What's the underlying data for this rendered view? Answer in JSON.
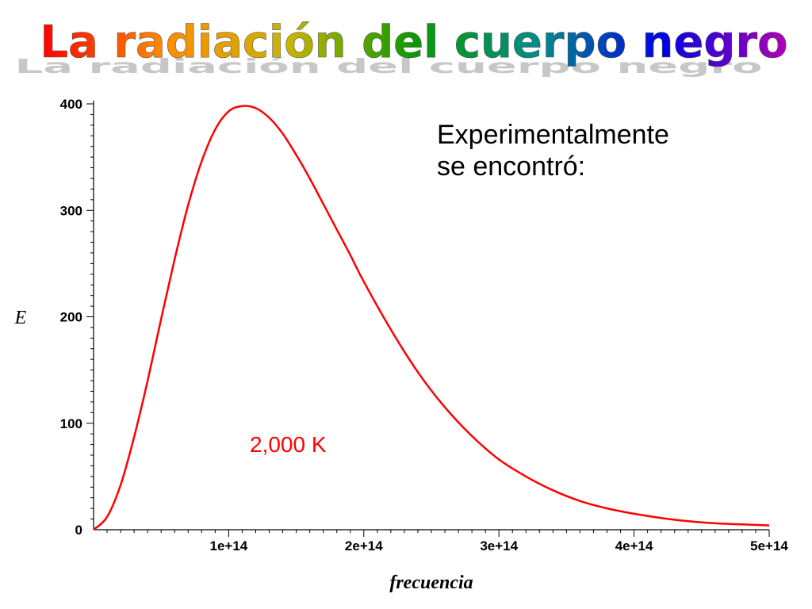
{
  "slide": {
    "title": "La radiación del cuerpo negro",
    "note_line1": "Experimentalmente",
    "note_line2": "se encontró:",
    "curve_label": "2,000 K"
  },
  "colors": {
    "curve": "#ff0000",
    "title_gradient": [
      "#ff0000",
      "#ff8c00",
      "#c8b400",
      "#0a9a00",
      "#008c8c",
      "#0000e6",
      "#b400b4"
    ],
    "title_shadow": "#999999"
  },
  "chart_data": {
    "type": "line",
    "xlabel": "frecuencia",
    "ylabel": "E",
    "xlim": [
      0,
      500000000000000.0
    ],
    "ylim": [
      0,
      400
    ],
    "x_ticks": [
      100000000000000.0,
      200000000000000.0,
      300000000000000.0,
      400000000000000.0,
      500000000000000.0
    ],
    "x_tick_labels": [
      "1e+14",
      "2e+14",
      "3e+14",
      "4e+14",
      "5e+14"
    ],
    "y_ticks": [
      0,
      100,
      200,
      300,
      400
    ],
    "y_tick_labels": [
      "0",
      "100",
      "200",
      "300",
      "400"
    ],
    "grid": false,
    "series": [
      {
        "name": "2,000 K",
        "color": "#ff0000",
        "x": [
          0,
          10000000000000.0,
          20000000000000.0,
          30000000000000.0,
          40000000000000.0,
          50000000000000.0,
          60000000000000.0,
          70000000000000.0,
          80000000000000.0,
          90000000000000.0,
          100000000000000.0,
          110000000000000.0,
          120000000000000.0,
          130000000000000.0,
          140000000000000.0,
          150000000000000.0,
          160000000000000.0,
          170000000000000.0,
          180000000000000.0,
          190000000000000.0,
          200000000000000.0,
          220000000000000.0,
          240000000000000.0,
          260000000000000.0,
          280000000000000.0,
          300000000000000.0,
          320000000000000.0,
          340000000000000.0,
          360000000000000.0,
          380000000000000.0,
          400000000000000.0,
          420000000000000.0,
          440000000000000.0,
          460000000000000.0,
          480000000000000.0,
          500000000000000.0
        ],
        "values": [
          0,
          12,
          42,
          87,
          140,
          198,
          254,
          305,
          346,
          376,
          393,
          398,
          396,
          387,
          372,
          352,
          330,
          306,
          282,
          258,
          233,
          188,
          148,
          115,
          88,
          66,
          50,
          37,
          27,
          20,
          15,
          11,
          8,
          6,
          5,
          4
        ]
      }
    ]
  }
}
